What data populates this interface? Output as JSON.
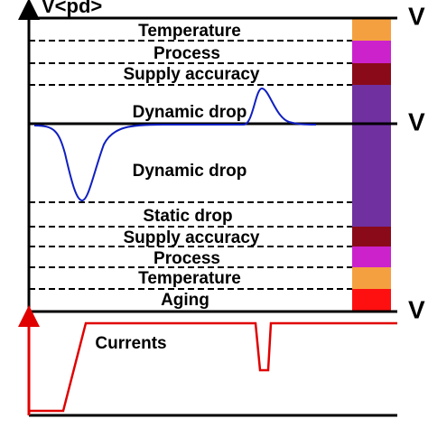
{
  "axis_label": "V<pd>",
  "right_labels": [
    "V",
    "V",
    "V"
  ],
  "upper_labels": [
    "Temperature",
    "Process",
    "Supply accuracy",
    "Dynamic drop"
  ],
  "lower_labels": [
    "Dynamic drop",
    "Static drop",
    "Supply accuracy",
    "Process",
    "Temperature",
    "Aging"
  ],
  "current_label": "Currents"
}
